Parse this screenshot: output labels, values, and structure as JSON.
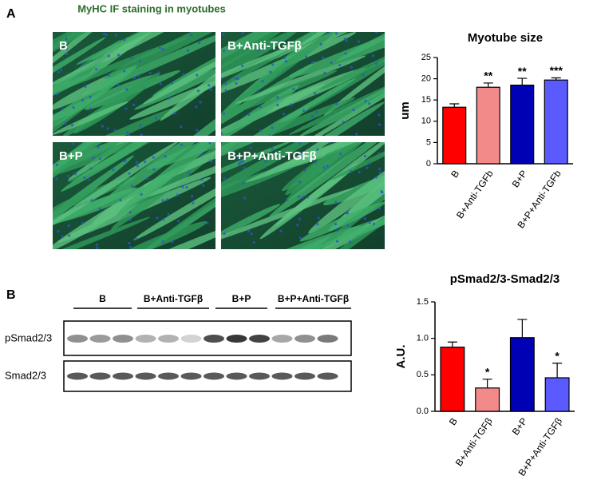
{
  "panel_a": {
    "label": "A",
    "title": "MyHC IF staining in myotubes",
    "images": [
      "B",
      "B+Anti-TGFβ",
      "B+P",
      "B+P+Anti-TGFβ"
    ]
  },
  "panel_b": {
    "label": "B",
    "groups": [
      "B",
      "B+Anti-TGFβ",
      "B+P",
      "B+P+Anti-TGFβ"
    ],
    "rows": [
      "pSmad2/3",
      "Smad2/3"
    ]
  },
  "chart_data": [
    {
      "type": "bar",
      "title": "Myotube size",
      "ylabel": "um",
      "categories": [
        "B",
        "B+Anti-TGFb",
        "B+P",
        "B+P+Anti-TGFb"
      ],
      "values": [
        13.3,
        18.0,
        18.5,
        19.7
      ],
      "errors": [
        0.8,
        1.0,
        1.6,
        0.5
      ],
      "annotations": [
        null,
        "**",
        "**",
        "***"
      ],
      "colors": [
        "#ff0000",
        "#f28a8a",
        "#0000b4",
        "#5a5aff"
      ],
      "ylim": [
        0,
        25
      ],
      "yticks": [
        0,
        5,
        10,
        15,
        20,
        25
      ]
    },
    {
      "type": "bar",
      "title": "pSmad2/3-Smad2/3",
      "ylabel": "A.U.",
      "categories": [
        "B",
        "B+Anti-TGFβ",
        "B+P",
        "B+P+Anti-TGFβ"
      ],
      "values": [
        0.88,
        0.32,
        1.01,
        0.46
      ],
      "errors": [
        0.07,
        0.12,
        0.25,
        0.2
      ],
      "annotations": [
        null,
        "*",
        null,
        "*"
      ],
      "colors": [
        "#ff0000",
        "#f28a8a",
        "#0000b4",
        "#5a5aff"
      ],
      "ylim": [
        0,
        1.5
      ],
      "yticks": [
        {
          "value": 0,
          "label": "0.0"
        },
        {
          "value": 0.5,
          "label": "0.5"
        },
        {
          "value": 1,
          "label": "1.0"
        },
        {
          "value": 1.5,
          "label": "1.5"
        }
      ]
    }
  ]
}
